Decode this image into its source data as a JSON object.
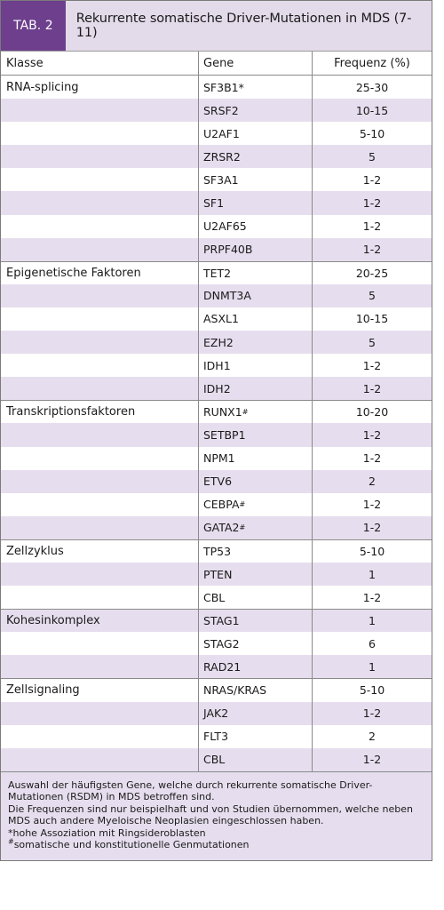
{
  "header": {
    "tab_label": "TAB. 2",
    "title": "Rekurrente somatische Driver-Mutationen in MDS (7-11)"
  },
  "columns": [
    "Klasse",
    "Gene",
    "Frequenz (%)"
  ],
  "rows": [
    {
      "klasse": "RNA-splicing",
      "gene": "SF3B1*",
      "sup": "",
      "freq": "25-30"
    },
    {
      "klasse": "",
      "gene": "SRSF2",
      "sup": "",
      "freq": "10-15"
    },
    {
      "klasse": "",
      "gene": "U2AF1",
      "sup": "",
      "freq": "5-10"
    },
    {
      "klasse": "",
      "gene": "ZRSR2",
      "sup": "",
      "freq": "5"
    },
    {
      "klasse": "",
      "gene": "SF3A1",
      "sup": "",
      "freq": "1-2"
    },
    {
      "klasse": "",
      "gene": "SF1",
      "sup": "",
      "freq": "1-2"
    },
    {
      "klasse": "",
      "gene": "U2AF65",
      "sup": "",
      "freq": "1-2"
    },
    {
      "klasse": "",
      "gene": "PRPF40B",
      "sup": "",
      "freq": "1-2"
    },
    {
      "klasse": "Epigenetische Faktoren",
      "gene": "TET2",
      "sup": "",
      "freq": "20-25"
    },
    {
      "klasse": "",
      "gene": "DNMT3A",
      "sup": "",
      "freq": "5"
    },
    {
      "klasse": "",
      "gene": "ASXL1",
      "sup": "",
      "freq": "10-15"
    },
    {
      "klasse": "",
      "gene": "EZH2",
      "sup": "",
      "freq": "5"
    },
    {
      "klasse": "",
      "gene": "IDH1",
      "sup": "",
      "freq": "1-2"
    },
    {
      "klasse": "",
      "gene": "IDH2",
      "sup": "",
      "freq": "1-2"
    },
    {
      "klasse": "Transkriptionsfaktoren",
      "gene": "RUNX1",
      "sup": "#",
      "freq": "10-20"
    },
    {
      "klasse": "",
      "gene": "SETBP1",
      "sup": "",
      "freq": "1-2"
    },
    {
      "klasse": "",
      "gene": "NPM1",
      "sup": "",
      "freq": "1-2"
    },
    {
      "klasse": "",
      "gene": "ETV6",
      "sup": "",
      "freq": "2"
    },
    {
      "klasse": "",
      "gene": "CEBPA",
      "sup": "#",
      "freq": "1-2"
    },
    {
      "klasse": "",
      "gene": "GATA2",
      "sup": "#",
      "freq": "1-2"
    },
    {
      "klasse": "Zellzyklus",
      "gene": "TP53",
      "sup": "",
      "freq": "5-10"
    },
    {
      "klasse": "",
      "gene": "PTEN",
      "sup": "",
      "freq": "1"
    },
    {
      "klasse": "",
      "gene": "CBL",
      "sup": "",
      "freq": "1-2"
    },
    {
      "klasse": "Kohesinkomplex",
      "gene": "STAG1",
      "sup": "",
      "freq": "1"
    },
    {
      "klasse": "",
      "gene": "STAG2",
      "sup": "",
      "freq": "6"
    },
    {
      "klasse": "",
      "gene": "RAD21",
      "sup": "",
      "freq": "1"
    },
    {
      "klasse": "Zellsignaling",
      "gene": "NRAS/KRAS",
      "sup": "",
      "freq": "5-10"
    },
    {
      "klasse": "",
      "gene": "JAK2",
      "sup": "",
      "freq": "1-2"
    },
    {
      "klasse": "",
      "gene": "FLT3",
      "sup": "",
      "freq": "2"
    },
    {
      "klasse": "",
      "gene": "CBL",
      "sup": "",
      "freq": "1-2"
    }
  ],
  "footnote": {
    "line1": "Auswahl der häufigsten Gene, welche durch rekurrente somatische Driver-Mutationen (RSDM) in MDS betroffen sind.",
    "line2": "Die Frequenzen sind nur beispielhaft und von Studien übernommen, welche neben MDS auch andere Myeloische Neoplasien eingeschlossen haben.",
    "line3": "*hohe Assoziation mit Ringsideroblasten",
    "line4_sup": "#",
    "line4": "somatische und konstitutionelle Genmutationen"
  },
  "colors": {
    "tab_purple": "#6d3f8c",
    "header_bg": "#e3dbea",
    "stripe": "#e6deee"
  }
}
